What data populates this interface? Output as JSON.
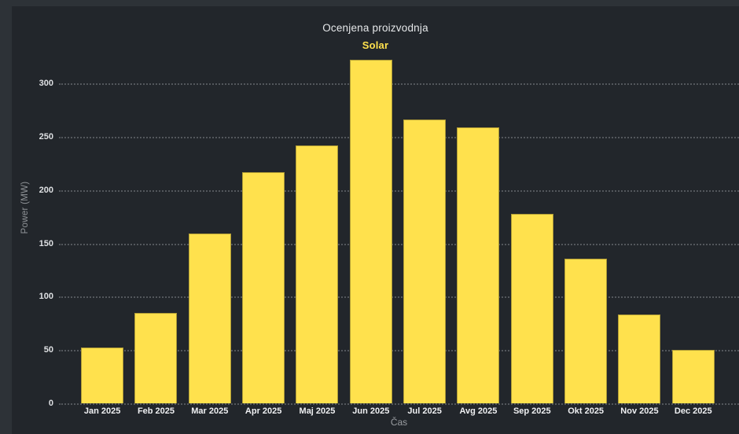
{
  "chart_data": {
    "type": "bar",
    "title": "Ocenjena proizvodnja",
    "legend_label": "Solar",
    "legend_position": "top",
    "xlabel": "Čas",
    "ylabel": "Power (MW)",
    "categories": [
      "Jan 2025",
      "Feb 2025",
      "Mar 2025",
      "Apr 2025",
      "Maj 2025",
      "Jun 2025",
      "Jul 2025",
      "Avg 2025",
      "Sep 2025",
      "Okt 2025",
      "Nov 2025",
      "Dec 2025"
    ],
    "values": [
      52,
      85,
      159,
      217,
      242,
      322,
      266,
      259,
      178,
      136,
      83,
      50
    ],
    "yticks": [
      0,
      50,
      100,
      150,
      200,
      250,
      300
    ],
    "ylim": [
      0,
      330
    ],
    "grid": "horizontal-dotted",
    "colors": {
      "bar": "#FFE14D",
      "panel_background": "#22262B",
      "outer_background": "#2D3237",
      "title_text": "#E6E8EA",
      "tick_text": "#EFF0F2",
      "axis_title_text": "#8F9397",
      "gridline": "#53575C"
    }
  }
}
